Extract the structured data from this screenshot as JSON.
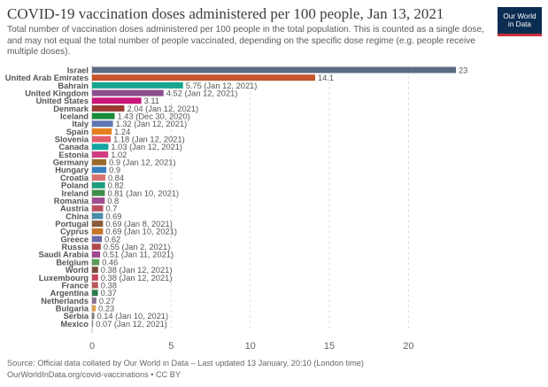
{
  "header": {
    "title": "COVID-19 vaccination doses administered per 100 people, Jan 13, 2021",
    "subtitle": "Total number of vaccination doses administered per 100 people in the total population. This is counted as a single dose, and may not equal the total number of people vaccinated, depending on the specific dose regime (e.g. people receive multiple doses)."
  },
  "logo": {
    "line1": "Our World",
    "line2": "in Data"
  },
  "footer": {
    "source": "Source: Official data collated by Our World in Data – Last updated 13 January, 20:10 (London time)",
    "url": "OurWorldInData.org/covid-vaccinations • CC BY"
  },
  "chart_data": {
    "type": "bar",
    "orientation": "horizontal",
    "categories": [
      "Israel",
      "United Arab Emirates",
      "Bahrain",
      "United Kingdom",
      "United States",
      "Denmark",
      "Iceland",
      "Italy",
      "Spain",
      "Slovenia",
      "Canada",
      "Estonia",
      "Germany",
      "Hungary",
      "Croatia",
      "Poland",
      "Ireland",
      "Romania",
      "Austria",
      "China",
      "Portugal",
      "Cyprus",
      "Greece",
      "Russia",
      "Saudi Arabia",
      "Belgium",
      "World",
      "Luxembourg",
      "France",
      "Argentina",
      "Netherlands",
      "Bulgaria",
      "Serbia",
      "Mexico"
    ],
    "values": [
      23,
      14.1,
      5.75,
      4.52,
      3.11,
      2.04,
      1.43,
      1.32,
      1.24,
      1.18,
      1.03,
      1.02,
      0.9,
      0.9,
      0.84,
      0.82,
      0.81,
      0.8,
      0.7,
      0.69,
      0.69,
      0.69,
      0.62,
      0.55,
      0.51,
      0.46,
      0.38,
      0.38,
      0.38,
      0.37,
      0.27,
      0.23,
      0.14,
      0.07
    ],
    "labels": [
      "23",
      "14.1",
      "5.75 (Jan 12, 2021)",
      "4.52 (Jan 12, 2021)",
      "3.11",
      "2.04 (Jan 12, 2021)",
      "1.43 (Dec 30, 2020)",
      "1.32 (Jan 12, 2021)",
      "1.24",
      "1.18 (Jan 12, 2021)",
      "1.03 (Jan 12, 2021)",
      "1.02",
      "0.9 (Jan 12, 2021)",
      "0.9",
      "0.84",
      "0.82",
      "0.81 (Jan 10, 2021)",
      "0.8",
      "0.7",
      "0.69",
      "0.69 (Jan 8, 2021)",
      "0.69 (Jan 10, 2021)",
      "0.62",
      "0.55 (Jan 2, 2021)",
      "0.51 (Jan 11, 2021)",
      "0.46",
      "0.38 (Jan 12, 2021)",
      "0.38 (Jan 12, 2021)",
      "0.38",
      "0.37",
      "0.27",
      "0.23",
      "0.14 (Jan 10, 2021)",
      "0.07 (Jan 12, 2021)"
    ],
    "colors": [
      "#5c6b83",
      "#c4542b",
      "#16a58f",
      "#8c4f8e",
      "#c81778",
      "#973b32",
      "#1b8c3d",
      "#6076b1",
      "#e37f1f",
      "#e05d6b",
      "#13a3a3",
      "#d23c82",
      "#9b6a2c",
      "#3a7fbd",
      "#d9736f",
      "#1f9d7d",
      "#3f8d4a",
      "#9f4d8f",
      "#b8505f",
      "#4a8baa",
      "#8a5a3a",
      "#c8752a",
      "#6a69a8",
      "#b04a4a",
      "#a0468f",
      "#5c9c5a",
      "#7c4d3b",
      "#c5435a",
      "#b85a5a",
      "#2f7a4a",
      "#8a7090",
      "#e0a050",
      "#777777",
      "#888888"
    ],
    "xlim": [
      0,
      23
    ],
    "xticks": [
      0,
      5,
      10,
      15,
      20
    ],
    "grid": true
  }
}
